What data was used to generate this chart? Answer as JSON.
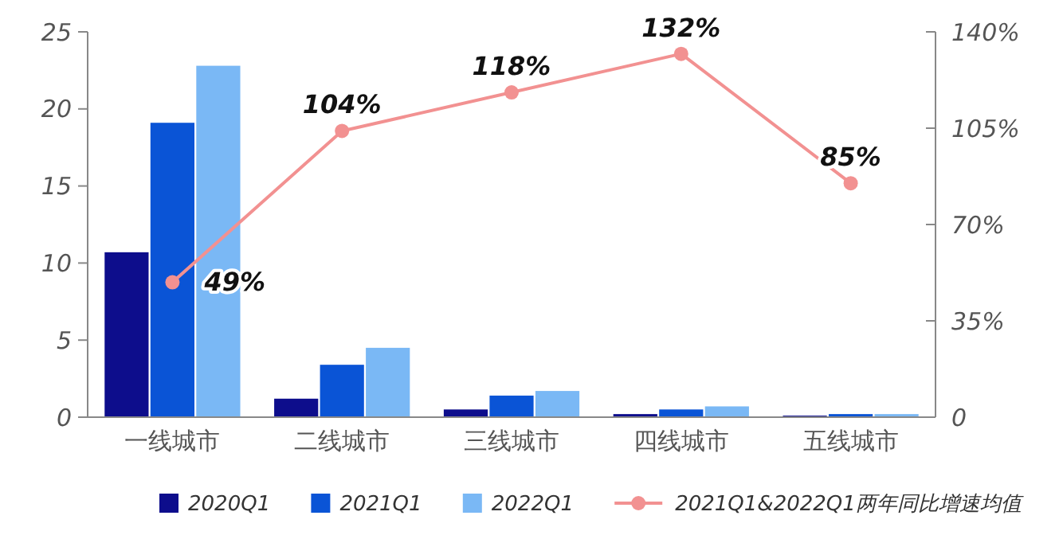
{
  "chart_data": {
    "type": "bar",
    "categories": [
      "一线城市",
      "二线城市",
      "三线城市",
      "四线城市",
      "五线城市"
    ],
    "series": [
      {
        "name": "2020Q1",
        "color": "#0d0d8c",
        "values": [
          10.7,
          1.2,
          0.5,
          0.2,
          0.1
        ]
      },
      {
        "name": "2021Q1",
        "color": "#0a54d6",
        "values": [
          19.1,
          3.4,
          1.4,
          0.5,
          0.2
        ]
      },
      {
        "name": "2022Q1",
        "color": "#7ab8f5",
        "values": [
          22.8,
          4.5,
          1.7,
          0.7,
          0.2
        ]
      },
      {
        "name": "2021Q1&2022Q1两年同比增速均值",
        "type": "line",
        "axis": "y2",
        "color": "#f29191",
        "values": [
          49,
          104,
          118,
          132,
          85
        ],
        "value_labels": [
          "49%",
          "104%",
          "118%",
          "132%",
          "85%"
        ]
      }
    ],
    "ylim": [
      0,
      25
    ],
    "yticks": [
      0,
      5,
      10,
      15,
      20,
      25
    ],
    "y2lim": [
      0,
      140
    ],
    "y2ticks": [
      0,
      {
        "value": 35,
        "label": "35%"
      },
      {
        "value": 70,
        "label": "70%"
      },
      {
        "value": 105,
        "label": "105%"
      },
      {
        "value": 140,
        "label": "140%"
      }
    ],
    "marker": "circle",
    "grid": false,
    "legend": "bottom"
  }
}
